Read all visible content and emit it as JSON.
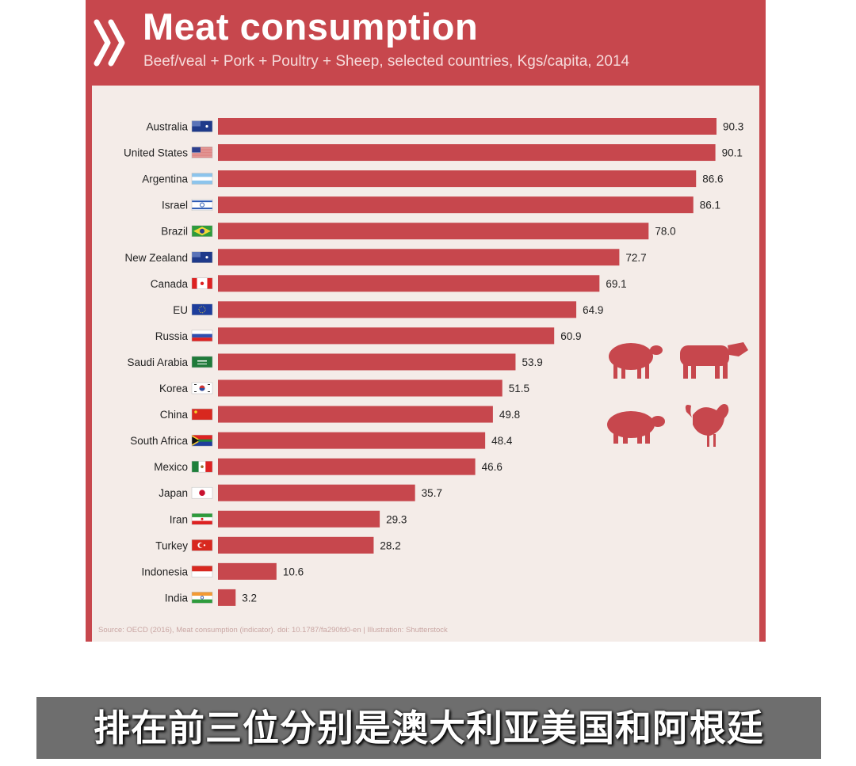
{
  "chart_data": {
    "type": "bar",
    "orientation": "horizontal",
    "title": "Meat consumption",
    "subtitle": "Beef/veal + Pork + Poultry + Sheep, selected countries, Kgs/capita, 2014",
    "categories": [
      "Australia",
      "United States",
      "Argentina",
      "Israel",
      "Brazil",
      "New Zealand",
      "Canada",
      "EU",
      "Russia",
      "Saudi Arabia",
      "Korea",
      "China",
      "South Africa",
      "Mexico",
      "Japan",
      "Iran",
      "Turkey",
      "Indonesia",
      "India"
    ],
    "values": [
      90.3,
      90.1,
      86.6,
      86.1,
      78.0,
      72.7,
      69.1,
      64.9,
      60.9,
      53.9,
      51.5,
      49.8,
      48.4,
      46.6,
      35.7,
      29.3,
      28.2,
      10.6,
      3.2
    ],
    "value_labels": [
      "90.3",
      "90.1",
      "86.6",
      "86.1",
      "78.0",
      "72.7",
      "69.1",
      "64.9",
      "60.9",
      "53.9",
      "51.5",
      "49.8",
      "48.4",
      "46.6",
      "35.7",
      "29.3",
      "28.2",
      "10.6",
      "3.2"
    ],
    "xlim": [
      0,
      91
    ],
    "grid": false,
    "legend": "none",
    "bar_color": "#c7474d"
  },
  "flags": [
    "australia-flag",
    "us-flag",
    "argentina-flag",
    "israel-flag",
    "brazil-flag",
    "new-zealand-flag",
    "canada-flag",
    "eu-flag",
    "russia-flag",
    "saudi-arabia-flag",
    "korea-flag",
    "china-flag",
    "south-africa-flag",
    "mexico-flag",
    "japan-flag",
    "iran-flag",
    "turkey-flag",
    "indonesia-flag",
    "india-flag"
  ],
  "animal_icons": [
    "sheep-icon",
    "cow-icon",
    "pig-icon",
    "rooster-icon"
  ],
  "source": "Source: OECD (2016), Meat consumption (indicator). doi: 10.1787/fa290fd0-en | Illustration: Shutterstock",
  "caption": "排在前三位分别是澳大利亚美国和阿根廷",
  "colors": {
    "card": "#c7474d",
    "panel": "#f4ece8",
    "bar": "#c7474d",
    "caption_bg": "#6e6e6e"
  }
}
